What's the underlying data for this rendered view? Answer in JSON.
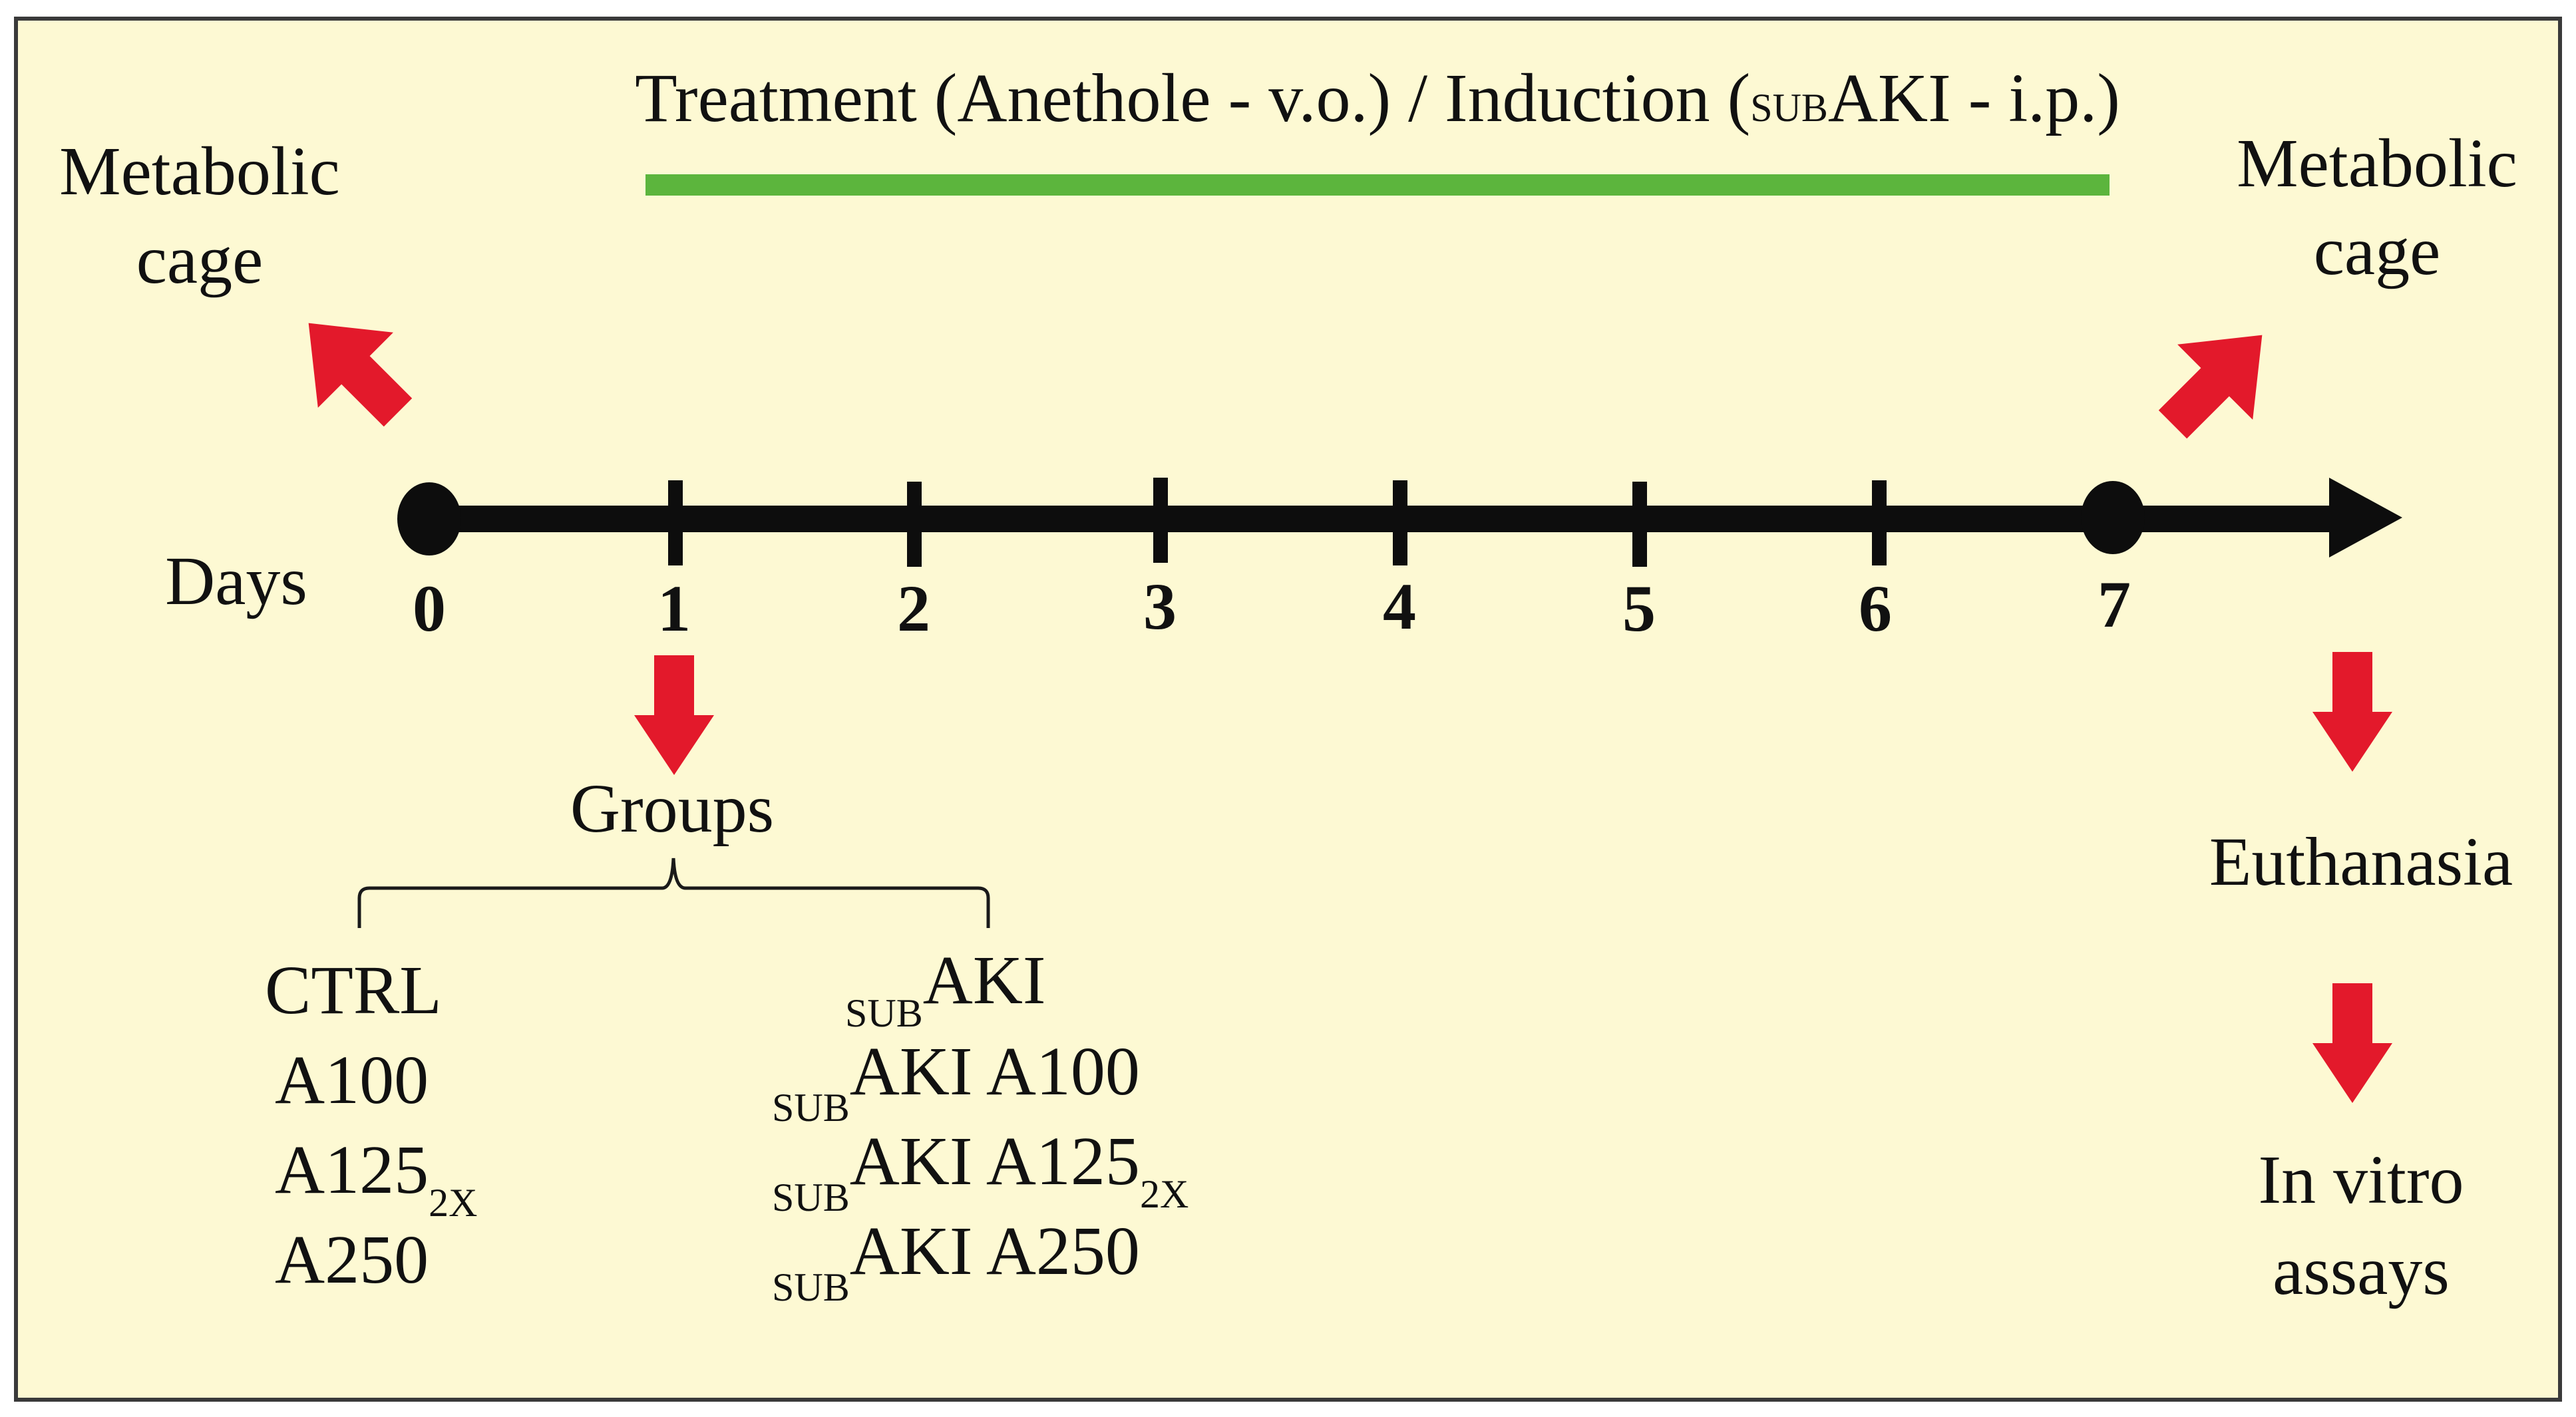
{
  "header": {
    "treatment_prefix": "Treatment (Anethole - v.o.) / Induction (",
    "treatment_sub": "SUB",
    "treatment_suffix": "AKI - i.p.)"
  },
  "timeline": {
    "axis_label": "Days",
    "day_labels": [
      "0",
      "1",
      "2",
      "3",
      "4",
      "5",
      "6",
      "7"
    ]
  },
  "metabolic_cage_left": {
    "line1": "Metabolic",
    "line2": "cage"
  },
  "metabolic_cage_right": {
    "line1": "Metabolic",
    "line2": "cage"
  },
  "groups": {
    "title": "Groups",
    "left": {
      "ctrl": "CTRL",
      "a100": "A100",
      "a125": "A125",
      "a125_sub": "2X",
      "a250": "A250"
    },
    "right": {
      "sub_prefix": "SUB",
      "aki": "AKI",
      "aki_a100": "AKI A100",
      "aki_a125": "AKI A125",
      "a125_sub": "2X",
      "aki_a250": "AKI A250"
    }
  },
  "end_steps": {
    "euthanasia": "Euthanasia",
    "in_vitro_line1": "In vitro",
    "in_vitro_line2": "assays"
  },
  "colors": {
    "background": "#fdf9d3",
    "treatment_bar": "#5cb53d",
    "arrow": "#e3192b",
    "axis": "#0d0d0d",
    "border": "#3a3a3a"
  }
}
